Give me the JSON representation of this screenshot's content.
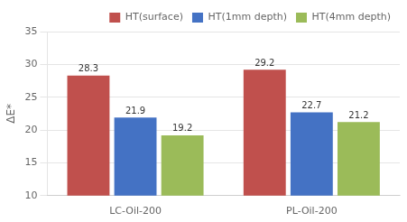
{
  "chart_data": {
    "type": "bar",
    "categories": [
      "LC-Oil-200",
      "PL-Oil-200"
    ],
    "series": [
      {
        "name": "HT(surface)",
        "color": "#C0504D",
        "values": [
          28.3,
          29.2
        ]
      },
      {
        "name": "HT(1mm depth)",
        "color": "#4472C4",
        "values": [
          21.9,
          22.7
        ]
      },
      {
        "name": "HT(4mm depth)",
        "color": "#9BBB59",
        "values": [
          19.2,
          21.2
        ]
      }
    ],
    "ylabel": "ΔE*",
    "ylim": [
      10,
      35
    ],
    "yticks": [
      10,
      15,
      20,
      25,
      30,
      35
    ],
    "grid": true,
    "legend": "top-right",
    "data_labels": true
  }
}
